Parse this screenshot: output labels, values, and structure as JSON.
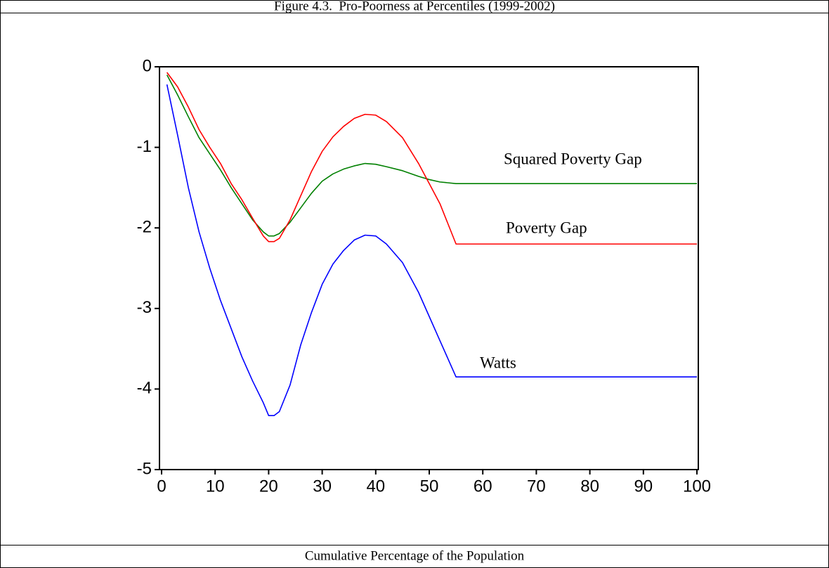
{
  "chart_data": {
    "type": "line",
    "title": "Figure 4.3.  Pro-Poorness at Percentiles (1999-2002)",
    "x_label": "Cumulative Percentage of the Population",
    "x": [
      1,
      3,
      5,
      7,
      9,
      11,
      13,
      15,
      17,
      19,
      20,
      21,
      22,
      24,
      26,
      28,
      30,
      32,
      34,
      36,
      38,
      40,
      42,
      45,
      48,
      50,
      52,
      55,
      60,
      70,
      80,
      90,
      100
    ],
    "series": [
      {
        "name": "Squared Poverty Gap",
        "color": "#008000",
        "values": [
          -0.1,
          -0.35,
          -0.62,
          -0.88,
          -1.08,
          -1.28,
          -1.5,
          -1.7,
          -1.9,
          -2.05,
          -2.1,
          -2.1,
          -2.07,
          -1.93,
          -1.75,
          -1.57,
          -1.42,
          -1.33,
          -1.27,
          -1.23,
          -1.2,
          -1.21,
          -1.24,
          -1.29,
          -1.36,
          -1.4,
          -1.43,
          -1.45,
          -1.45,
          -1.45,
          -1.45,
          -1.45,
          -1.45
        ]
      },
      {
        "name": "Poverty Gap",
        "color": "#ff0000",
        "values": [
          -0.07,
          -0.25,
          -0.5,
          -0.78,
          -1.0,
          -1.2,
          -1.45,
          -1.65,
          -1.88,
          -2.1,
          -2.17,
          -2.17,
          -2.13,
          -1.9,
          -1.6,
          -1.3,
          -1.05,
          -0.87,
          -0.74,
          -0.64,
          -0.59,
          -0.6,
          -0.68,
          -0.88,
          -1.2,
          -1.45,
          -1.7,
          -2.2,
          -2.2,
          -2.2,
          -2.2,
          -2.2,
          -2.2
        ]
      },
      {
        "name": "Watts",
        "color": "#0000ff",
        "values": [
          -0.22,
          -0.85,
          -1.5,
          -2.05,
          -2.5,
          -2.9,
          -3.25,
          -3.6,
          -3.9,
          -4.17,
          -4.33,
          -4.33,
          -4.28,
          -3.95,
          -3.45,
          -3.05,
          -2.7,
          -2.45,
          -2.28,
          -2.15,
          -2.09,
          -2.1,
          -2.2,
          -2.43,
          -2.8,
          -3.1,
          -3.4,
          -3.85,
          -3.85,
          -3.85,
          -3.85,
          -3.85,
          -3.85
        ]
      }
    ],
    "xlim": [
      0,
      100
    ],
    "xticks": [
      0,
      10,
      20,
      30,
      40,
      50,
      60,
      70,
      80,
      90,
      100
    ],
    "ylim": [
      -5,
      0
    ],
    "yticks": [
      0,
      -1,
      -2,
      -3,
      -4,
      -5
    ]
  }
}
